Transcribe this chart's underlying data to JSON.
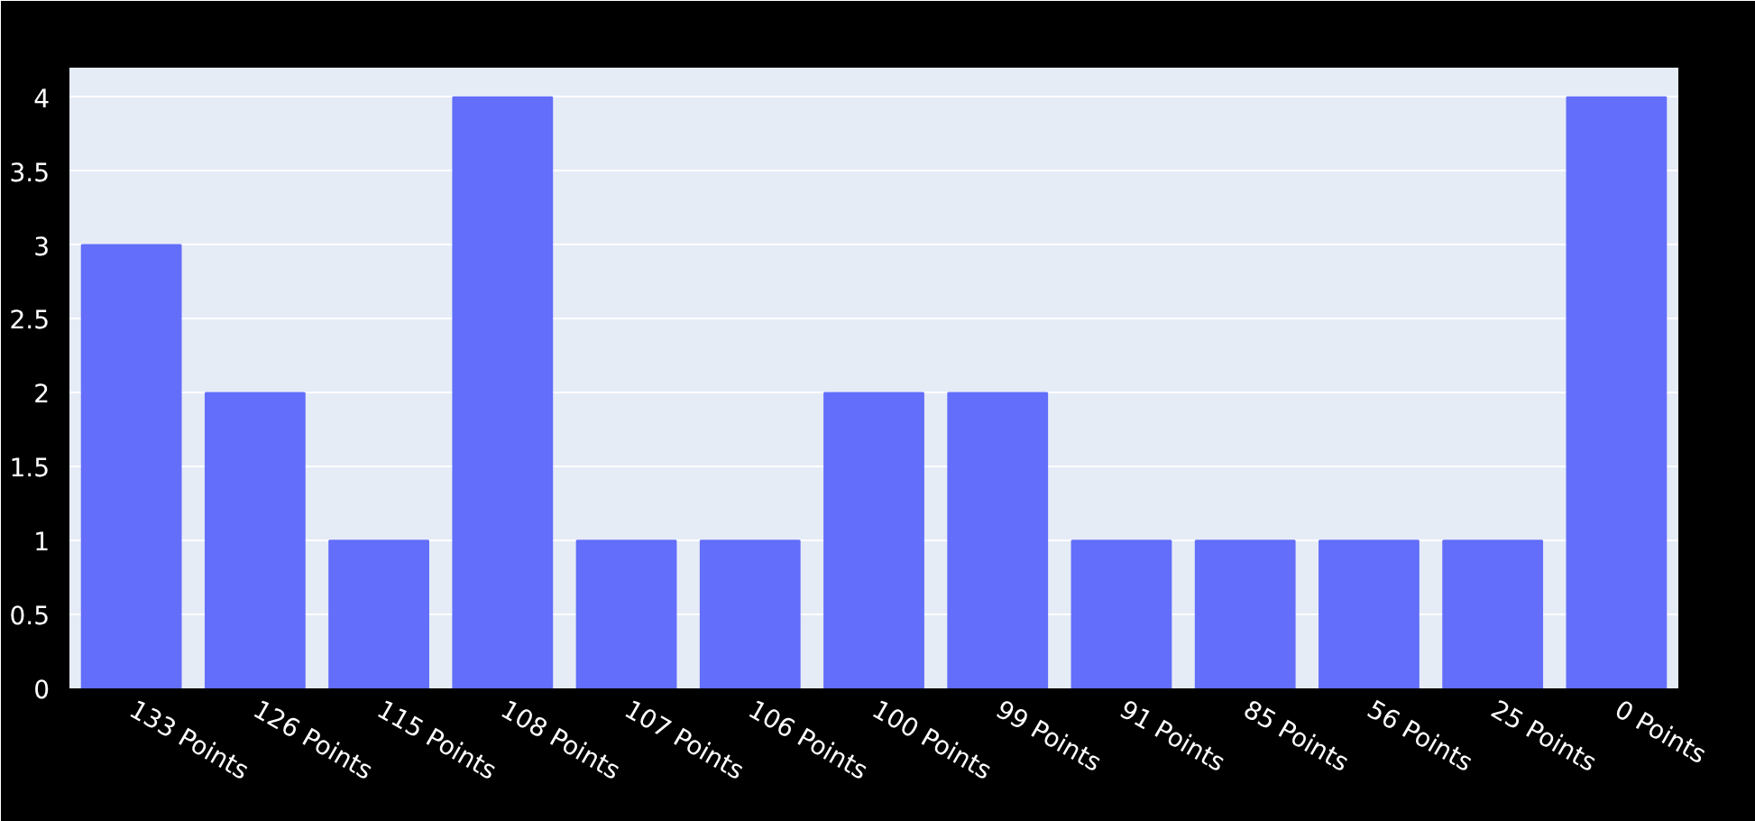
{
  "chart_data": {
    "type": "bar",
    "categories": [
      "133 Points",
      "126 Points",
      "115 Points",
      "108 Points",
      "107 Points",
      "106 Points",
      "100 Points",
      "99 Points",
      "91 Points",
      "85 Points",
      "56 Points",
      "25 Points",
      "0 Points"
    ],
    "values": [
      3,
      2,
      1,
      4,
      1,
      1,
      2,
      2,
      1,
      1,
      1,
      1,
      4
    ],
    "color": "#636efa",
    "ylim": [
      0,
      4.2
    ],
    "yticks": [
      0,
      0.5,
      1,
      1.5,
      2,
      2.5,
      3,
      3.5,
      4
    ],
    "grid": "y"
  }
}
